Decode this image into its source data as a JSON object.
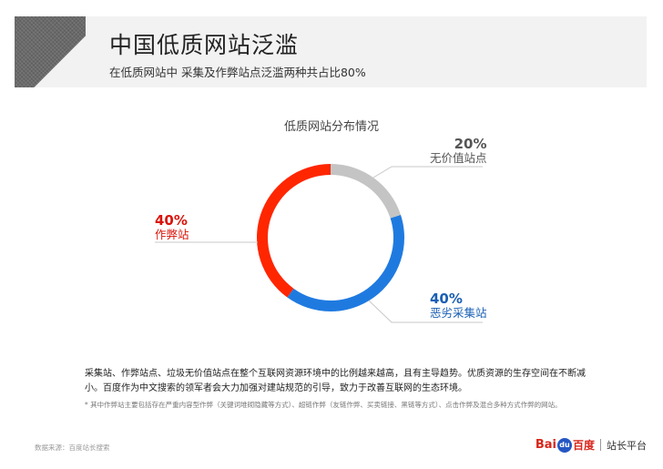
{
  "header": {
    "title": "中国低质网站泛滥",
    "subtitle": "在低质网站中 采集及作弊站点泛滥两种共占比80%"
  },
  "chart_data": {
    "type": "pie",
    "title": "低质网站分布情况",
    "donut": true,
    "slices": [
      {
        "name": "无价值站点",
        "value": 20,
        "label": "20%",
        "color": "#c4c4c4"
      },
      {
        "name": "恶劣采集站",
        "value": 40,
        "label": "40%",
        "color": "#1f7ae0"
      },
      {
        "name": "作弊站",
        "value": 40,
        "label": "40%",
        "color": "#ff2600"
      }
    ]
  },
  "body": {
    "text": "采集站、作弊站点、垃圾无价值站点在整个互联网资源环境中的比例越来越高，且有主导趋势。优质资源的生存空间在不断减小。百度作为中文搜索的领军者会大力加强对建站规范的引导，致力于改善互联网的生态环境。",
    "footnote": "* 其中作弊站主要包括存在严重内容型作弊（关键词堆砌隐藏等方式）、超链作弊（友链作弊、买卖链接、黑链等方式）、点击作弊及混合多种方式作弊的网站。",
    "source": "数据来源：百度站长搜索"
  },
  "logo": {
    "bai": "Bai",
    "paw": "du",
    "du": "百度",
    "platform": "站长平台"
  }
}
